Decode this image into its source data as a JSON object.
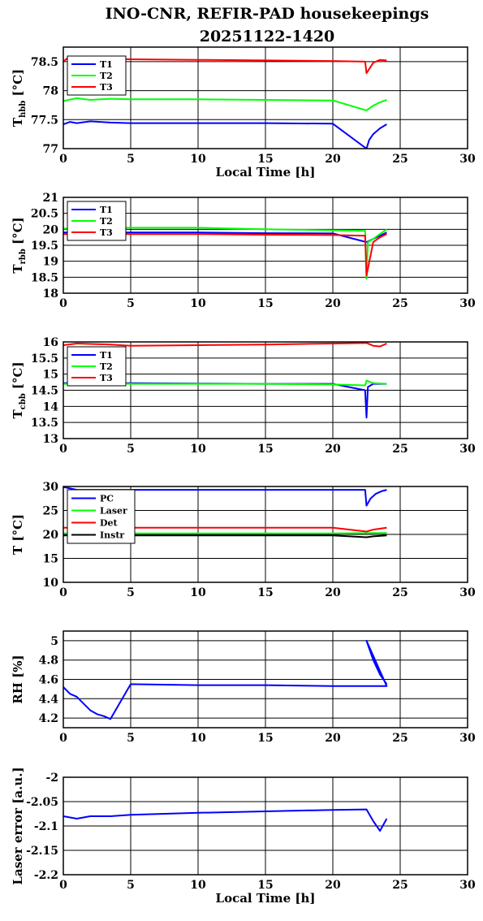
{
  "title_line1": "INO-CNR, REFIR-PAD housekeepings",
  "title_line2": "20251122-1420",
  "colors": {
    "blue": "#0000ff",
    "green": "#00ff00",
    "red": "#ff0000",
    "black": "#000000"
  },
  "chart_data": [
    {
      "type": "line",
      "ylabel_main": "T",
      "ylabel_sub": "hbb",
      "ylabel_tail": " [°C]",
      "xlabel": "Local Time [h]",
      "xlim": [
        0,
        30
      ],
      "ylim": [
        77,
        78.75
      ],
      "xticks": [
        0,
        5,
        10,
        15,
        20,
        25,
        30
      ],
      "yticks": [
        77,
        77.5,
        78,
        78.5
      ],
      "ytick_labels": [
        "77",
        "77.5",
        "78",
        "78.5"
      ],
      "grid": true,
      "legend": "top-left",
      "series": [
        {
          "name": "T1",
          "color": "#0000ff",
          "x": [
            0,
            0.5,
            1,
            2,
            3.5,
            5,
            10,
            15,
            20,
            22.5,
            22.7,
            23,
            23.5,
            24
          ],
          "y": [
            77.42,
            77.46,
            77.44,
            77.47,
            77.45,
            77.44,
            77.44,
            77.44,
            77.43,
            77.0,
            77.15,
            77.25,
            77.35,
            77.42
          ]
        },
        {
          "name": "T2",
          "color": "#00ff00",
          "x": [
            0,
            1,
            2,
            3.5,
            5,
            10,
            15,
            20,
            22.5,
            23,
            23.5,
            24
          ],
          "y": [
            77.82,
            77.87,
            77.84,
            77.86,
            77.85,
            77.85,
            77.84,
            77.83,
            77.66,
            77.74,
            77.8,
            77.84
          ]
        },
        {
          "name": "T3",
          "color": "#ff0000",
          "x": [
            0,
            0.3,
            1,
            3.5,
            5,
            10,
            15,
            20,
            22.4,
            22.5,
            23,
            23.5,
            24
          ],
          "y": [
            78.5,
            78.56,
            78.55,
            78.55,
            78.54,
            78.53,
            78.52,
            78.51,
            78.5,
            78.3,
            78.48,
            78.53,
            78.52
          ]
        }
      ]
    },
    {
      "type": "line",
      "ylabel_main": "T",
      "ylabel_sub": "rbb",
      "ylabel_tail": " [°C]",
      "xlabel": "",
      "xlim": [
        0,
        30
      ],
      "ylim": [
        18,
        21
      ],
      "xticks": [
        0,
        5,
        10,
        15,
        20,
        25,
        30
      ],
      "yticks": [
        18,
        18.5,
        19,
        19.5,
        20,
        20.5,
        21
      ],
      "ytick_labels": [
        "18",
        "18.5",
        "19",
        "19.5",
        "20",
        "20.5",
        "21"
      ],
      "grid": true,
      "legend": "top-left",
      "series": [
        {
          "name": "T1",
          "color": "#0000ff",
          "x": [
            0,
            5,
            10,
            15,
            20,
            22.5,
            23,
            23.5,
            24
          ],
          "y": [
            19.9,
            19.9,
            19.9,
            19.88,
            19.87,
            19.6,
            19.7,
            19.8,
            19.9
          ]
        },
        {
          "name": "T2",
          "color": "#00ff00",
          "x": [
            0,
            5,
            10,
            12,
            15,
            20,
            22.4,
            22.5,
            22.6,
            23,
            23.5,
            24
          ],
          "y": [
            20.02,
            20.05,
            20.05,
            20.03,
            20.0,
            19.97,
            19.95,
            18.45,
            19.6,
            19.7,
            19.85,
            20.0
          ]
        },
        {
          "name": "T3",
          "color": "#ff0000",
          "x": [
            0,
            5,
            10,
            15,
            20,
            22.4,
            22.5,
            23,
            23.5,
            24
          ],
          "y": [
            19.85,
            19.85,
            19.85,
            19.83,
            19.82,
            19.8,
            18.55,
            19.6,
            19.75,
            19.85
          ]
        }
      ]
    },
    {
      "type": "line",
      "ylabel_main": "T",
      "ylabel_sub": "cbb",
      "ylabel_tail": " [°C]",
      "xlabel": "",
      "xlim": [
        0,
        30
      ],
      "ylim": [
        13,
        16
      ],
      "xticks": [
        0,
        5,
        10,
        15,
        20,
        25,
        30
      ],
      "yticks": [
        13,
        13.5,
        14,
        14.5,
        15,
        15.5,
        16
      ],
      "ytick_labels": [
        "13",
        "13.5",
        "14",
        "14.5",
        "15",
        "15.5",
        "16"
      ],
      "grid": true,
      "legend": "top-left",
      "series": [
        {
          "name": "T1",
          "color": "#0000ff",
          "x": [
            0,
            5,
            10,
            15,
            20,
            22.4,
            22.5,
            22.6,
            23,
            24
          ],
          "y": [
            14.72,
            14.72,
            14.71,
            14.7,
            14.7,
            14.5,
            13.65,
            14.6,
            14.7,
            14.7
          ]
        },
        {
          "name": "T2",
          "color": "#00ff00",
          "x": [
            0,
            3.5,
            5,
            10,
            15,
            20,
            22.4,
            22.5,
            23,
            24
          ],
          "y": [
            14.7,
            14.72,
            14.7,
            14.7,
            14.7,
            14.68,
            14.65,
            14.8,
            14.72,
            14.7
          ]
        },
        {
          "name": "T3",
          "color": "#ff0000",
          "x": [
            0,
            1,
            3.5,
            5,
            10,
            15,
            20,
            22.5,
            23,
            23.5,
            24
          ],
          "y": [
            15.9,
            15.95,
            15.92,
            15.88,
            15.9,
            15.92,
            15.95,
            15.97,
            15.88,
            15.86,
            15.95
          ]
        }
      ]
    },
    {
      "type": "line",
      "ylabel_main": "T [°C]",
      "ylabel_sub": "",
      "ylabel_tail": "",
      "xlabel": "",
      "xlim": [
        0,
        30
      ],
      "ylim": [
        10,
        30
      ],
      "xticks": [
        0,
        5,
        10,
        15,
        20,
        25,
        30
      ],
      "yticks": [
        10,
        15,
        20,
        25,
        30
      ],
      "ytick_labels": [
        "10",
        "15",
        "20",
        "25",
        "30"
      ],
      "grid": true,
      "legend": "top-left",
      "series": [
        {
          "name": "PC",
          "color": "#0000ff",
          "x": [
            0,
            1,
            5,
            10,
            15,
            20,
            22.4,
            22.5,
            22.8,
            23.2,
            23.6,
            24
          ],
          "y": [
            29.9,
            29.3,
            29.3,
            29.3,
            29.3,
            29.3,
            29.3,
            26.0,
            27.5,
            28.5,
            29.0,
            29.3
          ]
        },
        {
          "name": "Laser",
          "color": "#00ff00",
          "x": [
            0,
            5,
            10,
            15,
            20,
            24
          ],
          "y": [
            20.2,
            20.2,
            20.2,
            20.2,
            20.2,
            20.3
          ]
        },
        {
          "name": "Det",
          "color": "#ff0000",
          "x": [
            0,
            5,
            10,
            15,
            20,
            22.5,
            23,
            24
          ],
          "y": [
            21.4,
            21.4,
            21.4,
            21.4,
            21.4,
            20.6,
            21.0,
            21.4
          ]
        },
        {
          "name": "Instr",
          "color": "#000000",
          "x": [
            0,
            5,
            10,
            15,
            20,
            22.5,
            23,
            24
          ],
          "y": [
            19.8,
            19.8,
            19.8,
            19.8,
            19.8,
            19.4,
            19.6,
            19.8
          ]
        }
      ]
    },
    {
      "type": "line",
      "ylabel_main": "RH [%]",
      "ylabel_sub": "",
      "ylabel_tail": "",
      "xlabel": "",
      "xlim": [
        0,
        30
      ],
      "ylim": [
        4.1,
        5.1
      ],
      "xticks": [
        0,
        5,
        10,
        15,
        20,
        25,
        30
      ],
      "yticks": [
        4.2,
        4.4,
        4.6,
        4.8,
        5
      ],
      "ytick_labels": [
        "4.2",
        "4.4",
        "4.6",
        "4.8",
        "5"
      ],
      "grid": true,
      "legend": "none",
      "series": [
        {
          "name": "",
          "color": "#0000ff",
          "x": [
            0,
            0.5,
            1,
            1.5,
            2,
            2.5,
            3,
            3.5,
            5,
            10,
            15,
            20,
            24,
            22.5,
            23,
            23.5,
            24
          ],
          "y": [
            4.52,
            4.45,
            4.42,
            4.35,
            4.28,
            4.24,
            4.22,
            4.19,
            4.55,
            4.54,
            4.54,
            4.53,
            4.53,
            5.0,
            4.8,
            4.65,
            4.55
          ]
        }
      ]
    },
    {
      "type": "line",
      "ylabel_main": "Laser error [a.u.]",
      "ylabel_sub": "",
      "ylabel_tail": "",
      "xlabel": "Local Time [h]",
      "xlim": [
        0,
        30
      ],
      "ylim": [
        -2.2,
        -2.0
      ],
      "xticks": [
        0,
        5,
        10,
        15,
        20,
        25,
        30
      ],
      "yticks": [
        -2.2,
        -2.15,
        -2.1,
        -2.05,
        -2
      ],
      "ytick_labels": [
        "-2.2",
        "-2.15",
        "-2.1",
        "-2.05",
        "-2"
      ],
      "grid": true,
      "legend": "none",
      "series": [
        {
          "name": "",
          "color": "#0000ff",
          "x": [
            0,
            1,
            2,
            3.5,
            5,
            10,
            15,
            20,
            22.5,
            23,
            23.5,
            24
          ],
          "y": [
            -2.08,
            -2.085,
            -2.08,
            -2.08,
            -2.077,
            -2.073,
            -2.07,
            -2.067,
            -2.066,
            -2.09,
            -2.11,
            -2.085
          ]
        }
      ]
    }
  ]
}
